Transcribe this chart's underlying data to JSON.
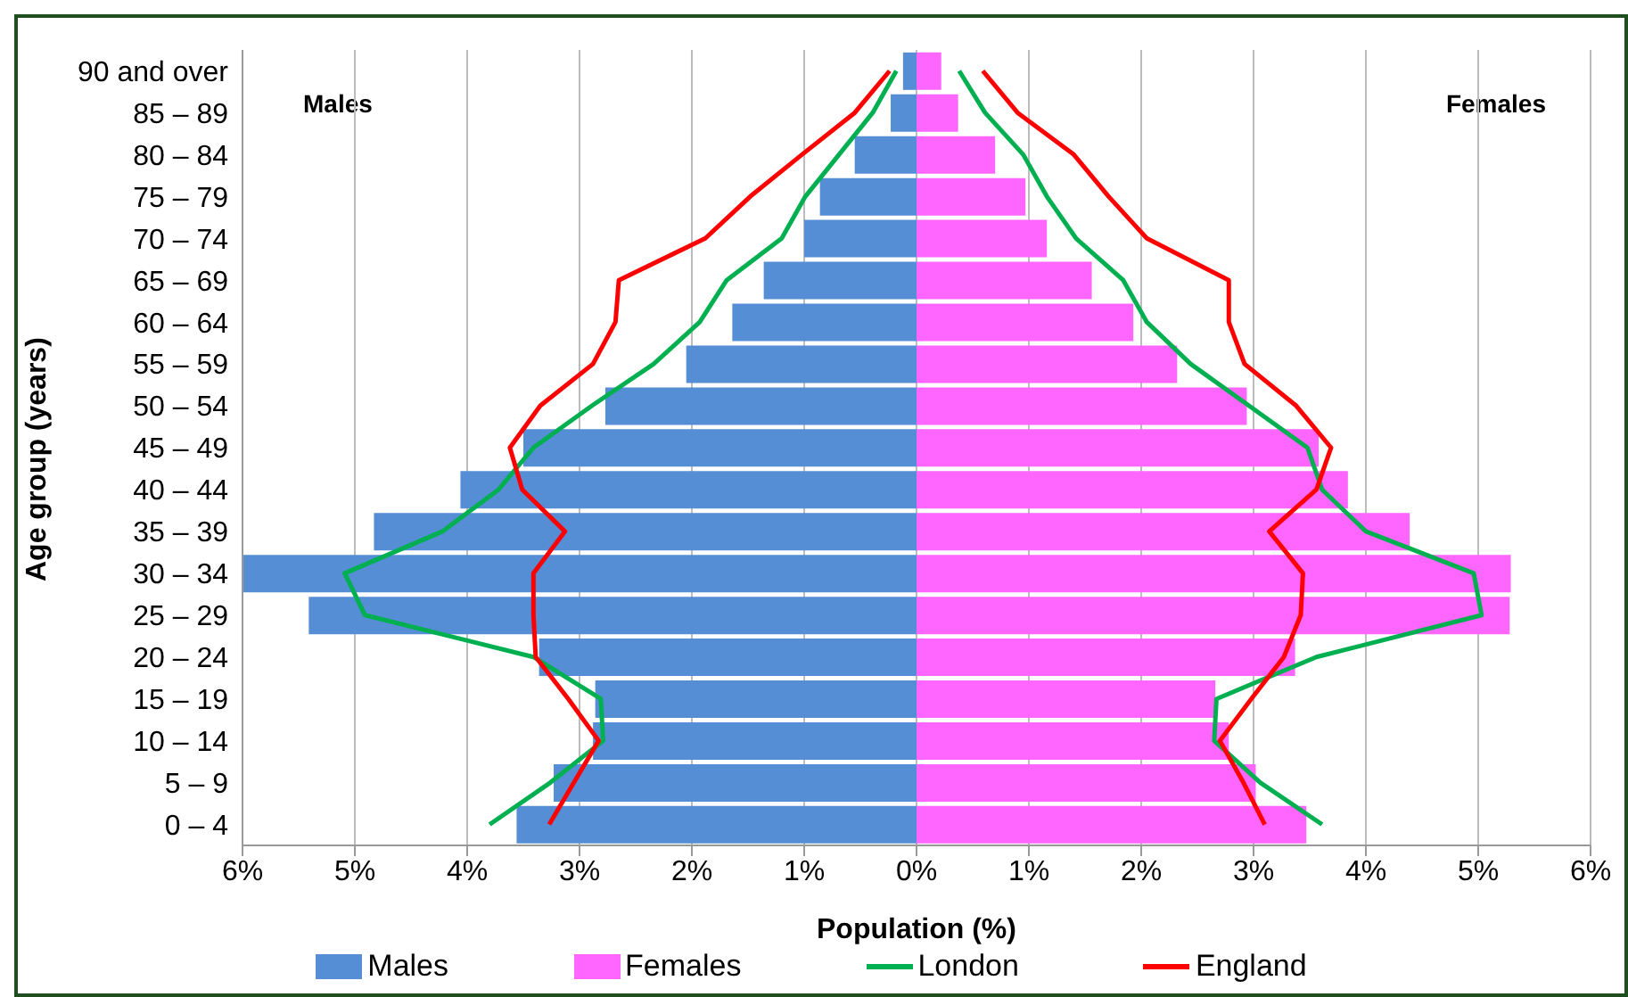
{
  "chart_data": {
    "type": "bar",
    "orientation": "horizontal",
    "xlabel": "Population (%)",
    "ylabel": "Age group (years)",
    "categories": [
      "90 and over",
      "85 – 89",
      "80 – 84",
      "75 – 79",
      "70 – 74",
      "65 – 69",
      "60 – 64",
      "55 – 59",
      "50 – 54",
      "45 – 49",
      "40 – 44",
      "35 – 39",
      "30 – 34",
      "25 – 29",
      "20 – 24",
      "15 – 19",
      "10 – 14",
      "5 – 9",
      "0 – 4"
    ],
    "series": [
      {
        "name": "Males",
        "color": "#558ed5",
        "values": [
          -0.12,
          -0.23,
          -0.55,
          -0.86,
          -1.0,
          -1.36,
          -1.64,
          -2.05,
          -2.77,
          -3.5,
          -4.06,
          -4.83,
          -6.0,
          -5.41,
          -3.36,
          -2.86,
          -2.88,
          -3.23,
          -3.56
        ]
      },
      {
        "name": "Females",
        "color": "#ff66ff",
        "values": [
          0.22,
          0.37,
          0.7,
          0.97,
          1.16,
          1.56,
          1.93,
          2.32,
          2.94,
          3.58,
          3.84,
          4.39,
          5.29,
          5.28,
          3.37,
          2.66,
          2.78,
          3.02,
          3.47
        ]
      },
      {
        "name": "London",
        "type": "line",
        "color": "#00b050",
        "values": [
          0.38,
          0.61,
          0.95,
          1.16,
          1.42,
          1.84,
          2.05,
          2.44,
          2.96,
          3.48,
          3.61,
          4.0,
          4.96,
          5.03,
          3.56,
          2.67,
          2.65,
          3.06,
          3.61
        ]
      },
      {
        "type": "line",
        "color": "#00b050",
        "values": [
          -0.18,
          -0.39,
          -0.69,
          -0.99,
          -1.2,
          -1.69,
          -1.93,
          -2.34,
          -2.89,
          -3.41,
          -3.72,
          -4.22,
          -5.09,
          -4.91,
          -3.41,
          -2.81,
          -2.79,
          -3.26,
          -3.8
        ]
      },
      {
        "name": "England",
        "type": "line",
        "color": "#ff0000",
        "values": [
          0.59,
          0.9,
          1.4,
          1.71,
          2.05,
          2.78,
          2.78,
          2.92,
          3.38,
          3.69,
          3.56,
          3.14,
          3.44,
          3.42,
          3.27,
          2.98,
          2.7,
          2.91,
          3.1
        ]
      },
      {
        "type": "line",
        "color": "#ff0000",
        "values": [
          -0.24,
          -0.55,
          -1.02,
          -1.48,
          -1.88,
          -2.65,
          -2.68,
          -2.88,
          -3.35,
          -3.62,
          -3.51,
          -3.13,
          -3.41,
          -3.41,
          -3.39,
          -3.1,
          -2.83,
          -3.05,
          -3.27
        ]
      }
    ],
    "stacked": true,
    "xlim": [
      -6,
      6
    ],
    "xticks": [
      {
        "value": -6,
        "label": "6%"
      },
      {
        "value": -5,
        "label": "5%"
      },
      {
        "value": -4,
        "label": "4%"
      },
      {
        "value": -3,
        "label": "3%"
      },
      {
        "value": -2,
        "label": "2%"
      },
      {
        "value": -1,
        "label": "1%"
      },
      {
        "value": 0,
        "label": "0%"
      },
      {
        "value": 1,
        "label": "1%"
      },
      {
        "value": 2,
        "label": "2%"
      },
      {
        "value": 3,
        "label": "3%"
      },
      {
        "value": 4,
        "label": "4%"
      },
      {
        "value": 5,
        "label": "5%"
      },
      {
        "value": 6,
        "label": "6%"
      }
    ],
    "annotations": [
      "Males",
      "Females"
    ],
    "grid": "x",
    "legend": "bottom",
    "marker": "none",
    "line_style": "solid"
  }
}
